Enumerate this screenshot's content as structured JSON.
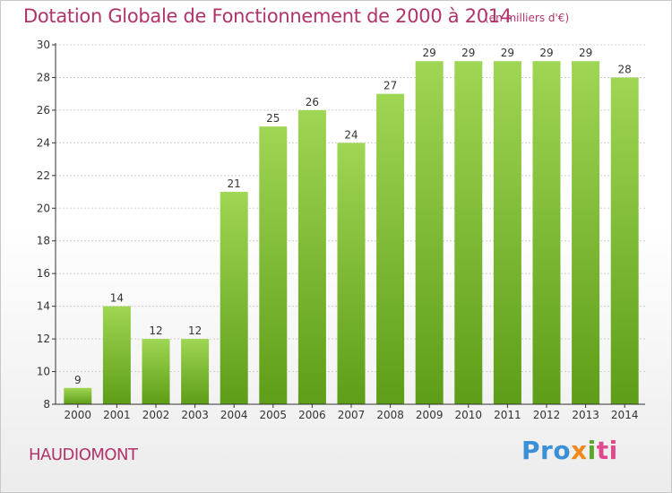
{
  "header": {
    "title": "Dotation Globale de Fonctionnement de 2000 à 2014",
    "unit": "(en milliers d'€)"
  },
  "footer": {
    "commune": "HAUDIOMONT",
    "brand_parts": [
      "Pro",
      "x",
      "i",
      "ti"
    ]
  },
  "colors": {
    "title": "#b0336b",
    "bar_top": "#9fd654",
    "bar_bottom": "#5e9d17",
    "grid": "#d0d0d0",
    "axis": "#333333"
  },
  "chart_data": {
    "type": "bar",
    "title": "Dotation Globale de Fonctionnement de 2000 à 2014",
    "categories": [
      "2000",
      "2001",
      "2002",
      "2003",
      "2004",
      "2005",
      "2006",
      "2007",
      "2008",
      "2009",
      "2010",
      "2011",
      "2012",
      "2013",
      "2014"
    ],
    "values": [
      9,
      14,
      12,
      12,
      21,
      25,
      26,
      24,
      27,
      29,
      29,
      29,
      29,
      29,
      28
    ],
    "ylim": [
      8,
      30
    ],
    "yticks": [
      8,
      10,
      12,
      14,
      16,
      18,
      20,
      22,
      24,
      26,
      28,
      30
    ],
    "grid": true,
    "xlabel": "",
    "ylabel": ""
  }
}
